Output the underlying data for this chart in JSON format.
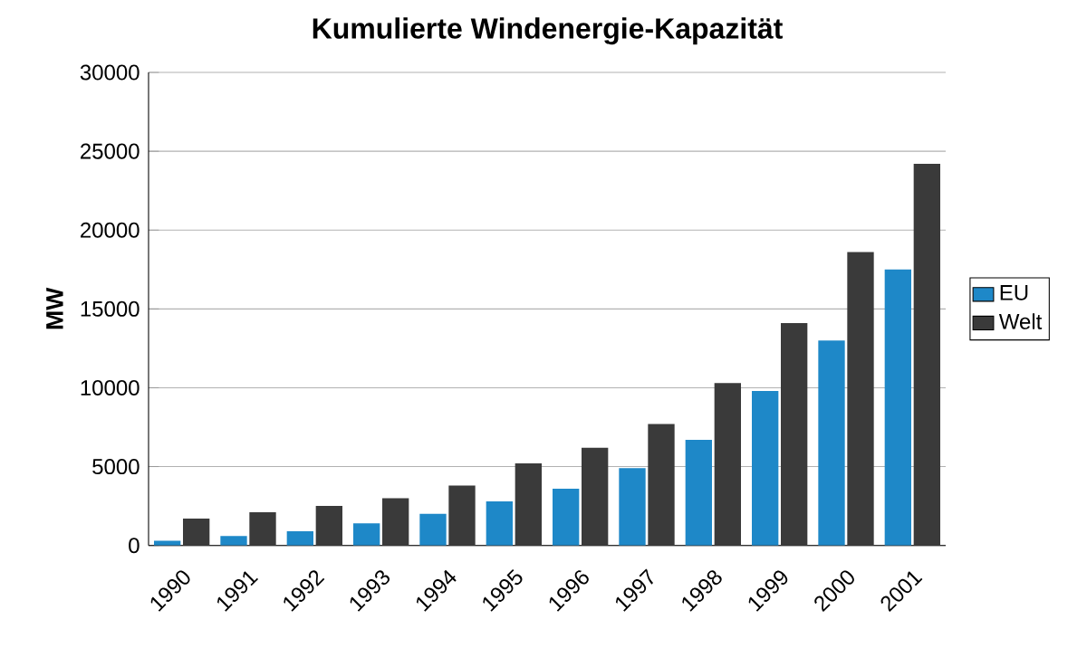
{
  "chart_data": {
    "type": "bar",
    "title": "Kumulierte Windenergie-Kapazität",
    "ylabel": "MW",
    "categories": [
      "1990",
      "1991",
      "1992",
      "1993",
      "1994",
      "1995",
      "1996",
      "1997",
      "1998",
      "1999",
      "2000",
      "2001"
    ],
    "series": [
      {
        "name": "EU",
        "color": "#1e88c8",
        "values": [
          300,
          600,
          900,
          1400,
          2000,
          2800,
          3600,
          4900,
          6700,
          9800,
          13000,
          17500
        ]
      },
      {
        "name": "Welt",
        "color": "#3a3a3a",
        "values": [
          1700,
          2100,
          2500,
          3000,
          3800,
          5200,
          6200,
          7700,
          10300,
          14100,
          18600,
          24200
        ]
      }
    ],
    "ylim": [
      0,
      30000
    ],
    "yticks": [
      0,
      5000,
      10000,
      15000,
      20000,
      25000,
      30000
    ],
    "grid": "y",
    "legend": "right"
  }
}
